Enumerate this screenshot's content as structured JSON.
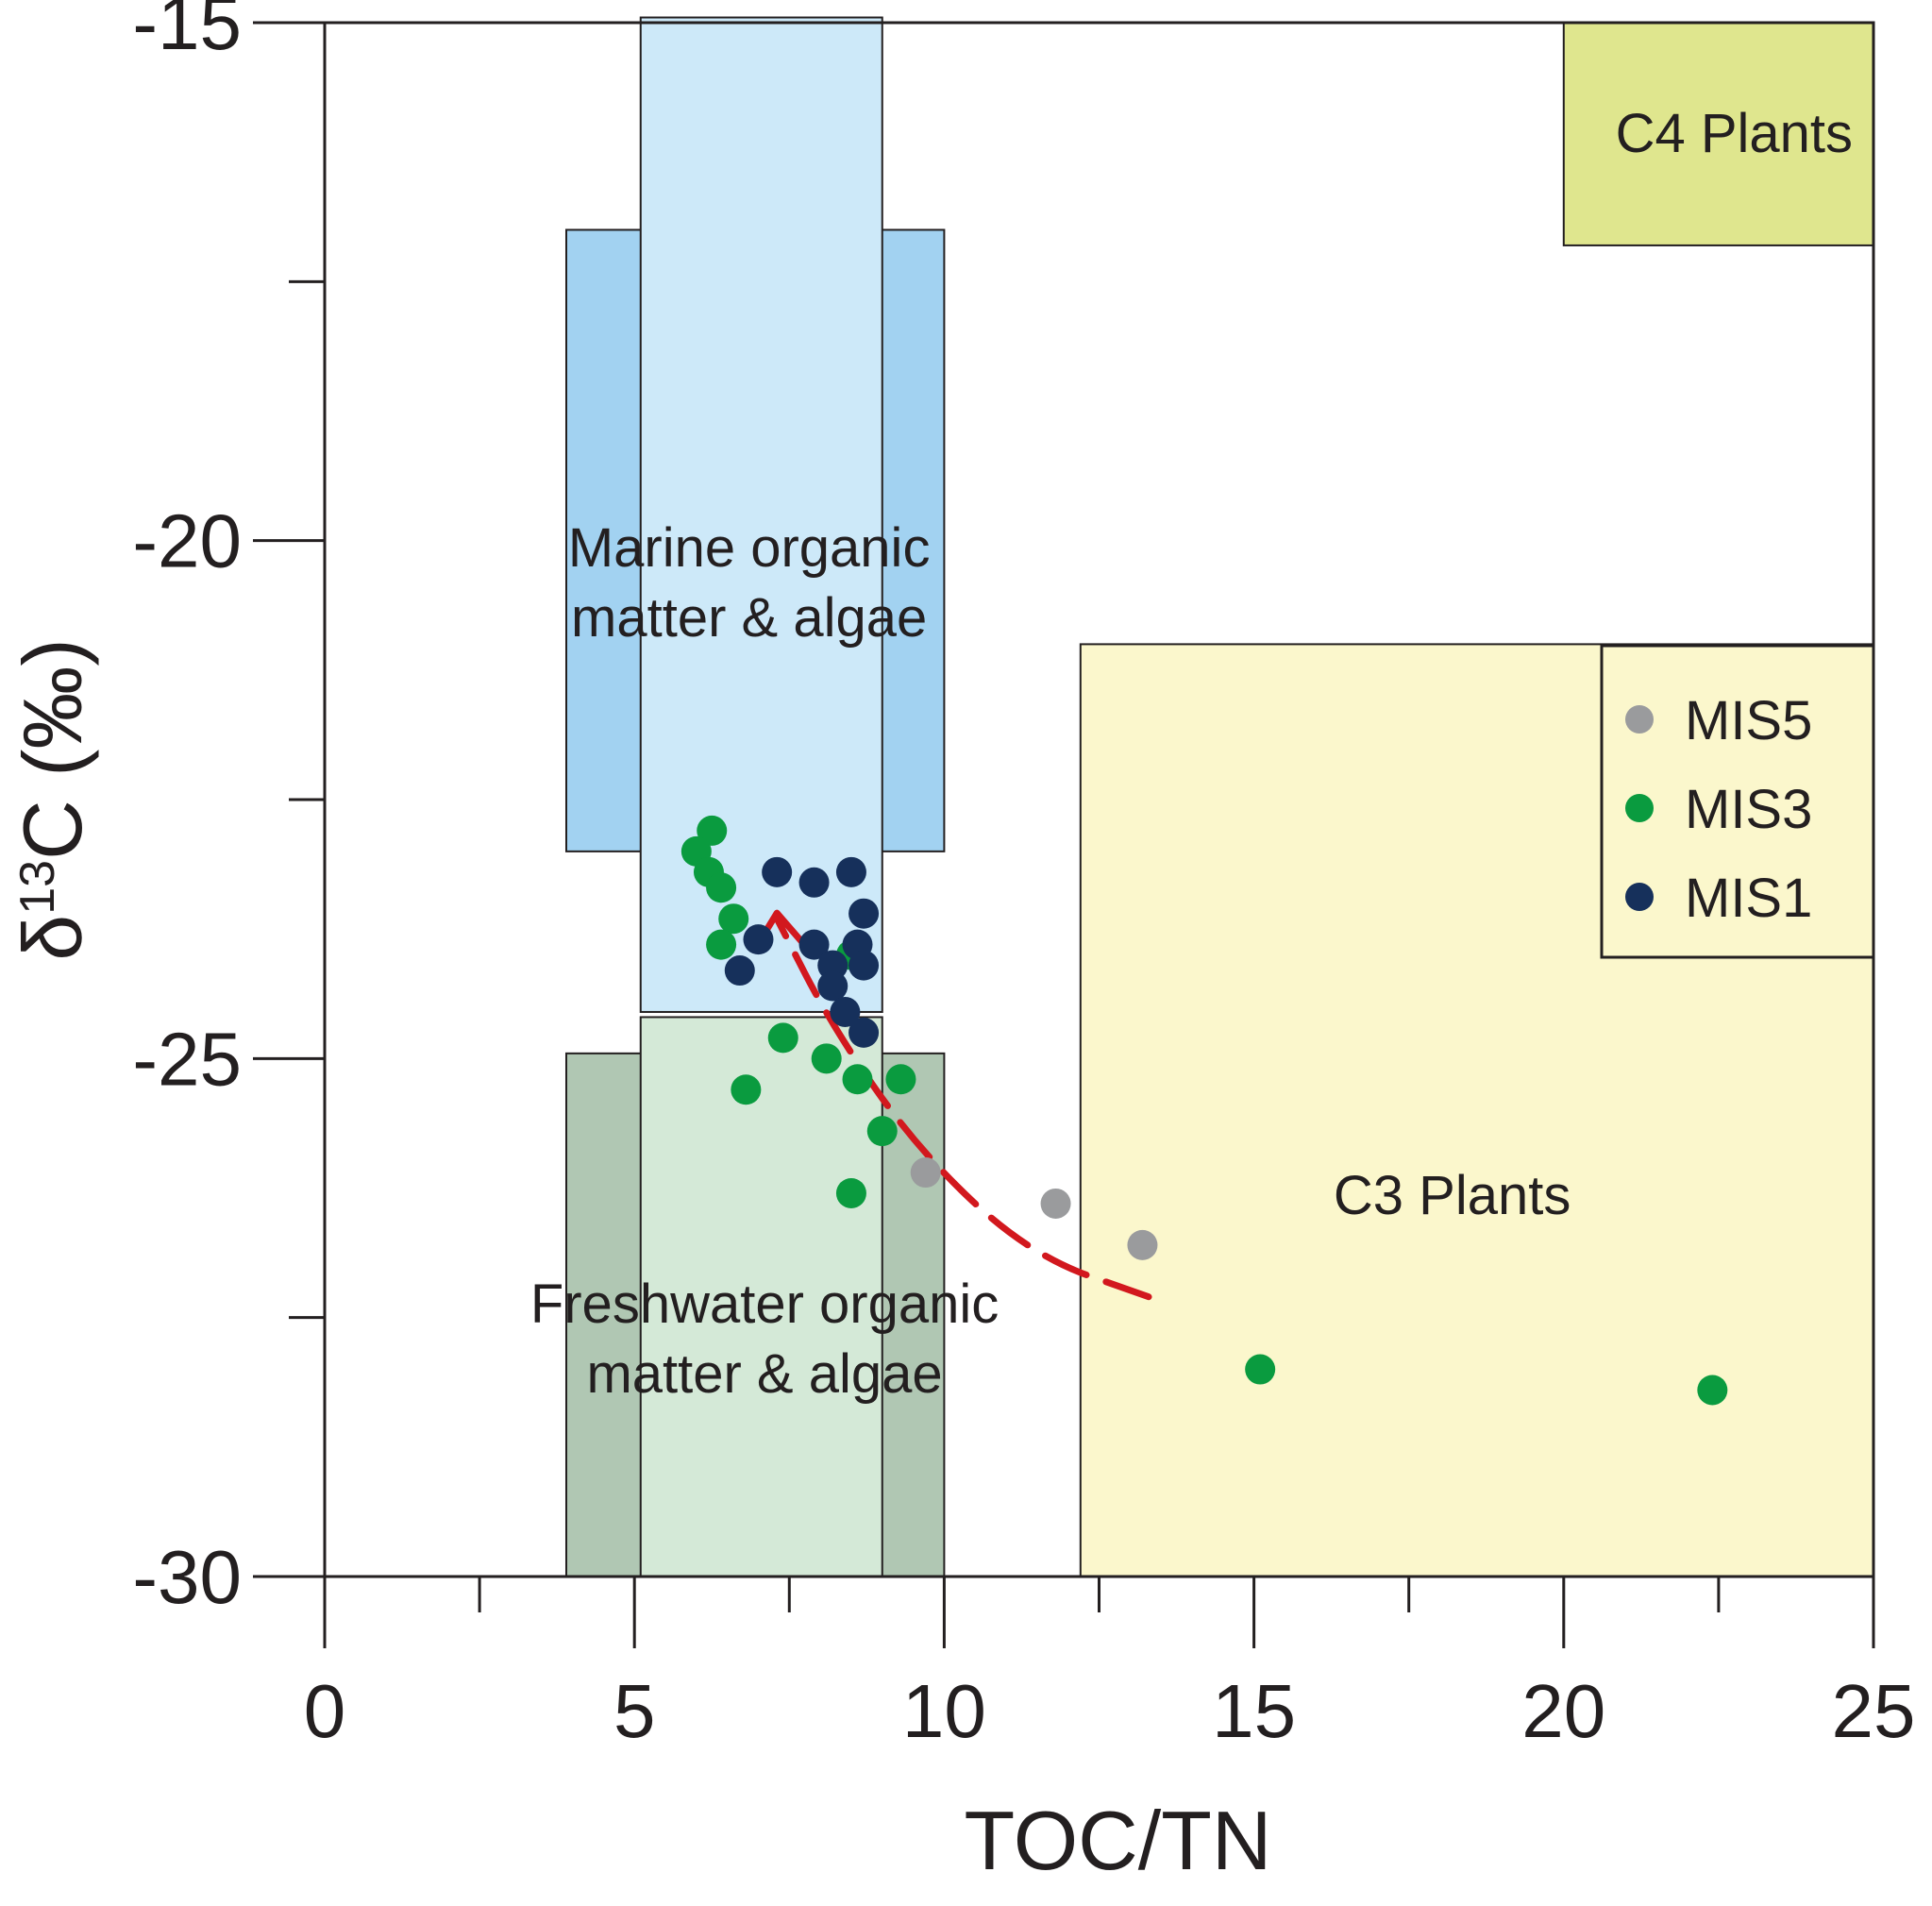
{
  "chart_data": {
    "type": "scatter",
    "xlabel": "TOC/TN",
    "ylabel": "δ13C (‰)",
    "xlim": [
      0,
      25
    ],
    "ylim": [
      -30,
      -15
    ],
    "x_tick_labels": [
      "0",
      "5",
      "10",
      "15",
      "20",
      "25"
    ],
    "y_tick_labels": [
      "-15",
      "-20",
      "-25",
      "-30"
    ],
    "legend_placement": "top-right inside C3 Plants field",
    "regions": [
      {
        "id": "marine-outer",
        "label": "",
        "x": [
          3.9,
          10.0
        ],
        "y": [
          -23.0,
          -17.0
        ],
        "color": "#a2d2f1"
      },
      {
        "id": "marine-inner",
        "label": "Marine organic matter & algae",
        "label_lines": [
          "Marine organic",
          "matter & algae"
        ],
        "x": [
          5.1,
          9.0
        ],
        "y": [
          -24.55,
          -14.95
        ],
        "color": "#cde9f9"
      },
      {
        "id": "fresh-outer",
        "label": "",
        "x": [
          3.9,
          10.0
        ],
        "y": [
          -30.0,
          -24.95
        ],
        "color": "#b0c7b3"
      },
      {
        "id": "fresh-inner",
        "label": "Freshwater organic matter & algae",
        "label_lines": [
          "Freshwater organic",
          "matter & algae"
        ],
        "x": [
          5.1,
          9.0
        ],
        "y": [
          -30.0,
          -24.6
        ],
        "color": "#d4e9d7"
      },
      {
        "id": "c3",
        "label": "C3 Plants",
        "label_lines": [
          "C3 Plants"
        ],
        "x": [
          12.2,
          25.0
        ],
        "y": [
          -30.0,
          -21.0
        ],
        "color": "#fbf7cc"
      },
      {
        "id": "c4",
        "label": "C4 Plants",
        "label_lines": [
          "C4 Plants"
        ],
        "x": [
          20.0,
          25.0
        ],
        "y": [
          -17.15,
          -15.0
        ],
        "color": "#dfe68e"
      }
    ],
    "series": [
      {
        "name": "MIS5",
        "color": "#9a9b9d",
        "points": [
          [
            9.7,
            -26.1
          ],
          [
            11.8,
            -26.4
          ],
          [
            13.2,
            -26.8
          ]
        ]
      },
      {
        "name": "MIS3",
        "color": "#0a9b3f",
        "points": [
          [
            6.25,
            -22.8
          ],
          [
            6.0,
            -23.0
          ],
          [
            6.2,
            -23.2
          ],
          [
            6.4,
            -23.35
          ],
          [
            6.6,
            -23.65
          ],
          [
            6.4,
            -23.9
          ],
          [
            8.5,
            -24.0
          ],
          [
            7.4,
            -24.8
          ],
          [
            8.1,
            -25.0
          ],
          [
            6.8,
            -25.3
          ],
          [
            8.6,
            -25.2
          ],
          [
            9.3,
            -25.2
          ],
          [
            9.0,
            -25.7
          ],
          [
            8.5,
            -26.3
          ],
          [
            15.1,
            -28.0
          ],
          [
            22.4,
            -28.2
          ]
        ]
      },
      {
        "name": "MIS1",
        "color": "#16305b",
        "points": [
          [
            7.3,
            -23.2
          ],
          [
            7.9,
            -23.3
          ],
          [
            8.5,
            -23.2
          ],
          [
            8.7,
            -23.6
          ],
          [
            7.0,
            -23.85
          ],
          [
            7.9,
            -23.9
          ],
          [
            8.6,
            -23.9
          ],
          [
            8.2,
            -24.1
          ],
          [
            8.7,
            -24.1
          ],
          [
            6.7,
            -24.15
          ],
          [
            8.2,
            -24.3
          ],
          [
            8.4,
            -24.55
          ],
          [
            8.7,
            -24.75
          ]
        ]
      }
    ],
    "trend_arrow": {
      "style": "dashed",
      "color": "#d2181e",
      "points": [
        [
          13.3,
          -27.3
        ],
        [
          11.4,
          -26.9
        ],
        [
          9.6,
          -25.9
        ],
        [
          8.2,
          -24.7
        ],
        [
          7.3,
          -23.65
        ]
      ]
    }
  }
}
